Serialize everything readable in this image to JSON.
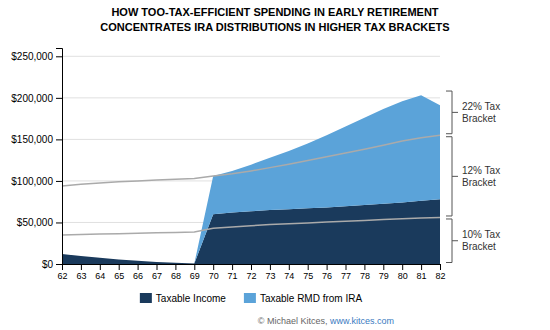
{
  "chart_data": {
    "type": "area",
    "stacked": true,
    "title": "HOW TOO-TAX-EFFICIENT SPENDING IN EARLY RETIREMENT",
    "subtitle": "CONCENTRATES IRA DISTRIBUTIONS IN HIGHER TAX BRACKETS",
    "x": [
      62,
      63,
      64,
      65,
      66,
      67,
      68,
      69,
      70,
      71,
      72,
      73,
      74,
      75,
      76,
      77,
      78,
      79,
      80,
      81,
      82
    ],
    "xlim": [
      62,
      82
    ],
    "xticks": [
      62,
      63,
      64,
      65,
      66,
      67,
      68,
      69,
      70,
      71,
      72,
      73,
      74,
      75,
      76,
      77,
      78,
      79,
      80,
      81,
      82
    ],
    "ylim": [
      0,
      260000
    ],
    "yticks": [
      {
        "value": 0,
        "label": "$0"
      },
      {
        "value": 50000,
        "label": "$50,000"
      },
      {
        "value": 100000,
        "label": "$100,000"
      },
      {
        "value": 150000,
        "label": "$150,000"
      },
      {
        "value": 200000,
        "label": "$200,000"
      },
      {
        "value": 250000,
        "label": "$250,000"
      }
    ],
    "grid": true,
    "legend": "bottom",
    "series": [
      {
        "name": "Taxable Income",
        "type": "area",
        "color": "#1a3a5c",
        "values": [
          12000,
          9500,
          7500,
          5500,
          4000,
          2500,
          1500,
          500,
          60000,
          62000,
          63500,
          65000,
          66000,
          67000,
          68000,
          69500,
          71000,
          72500,
          74000,
          76000,
          78000
        ]
      },
      {
        "name": "Taxable RMD from IRA",
        "type": "area",
        "color": "#5ba3d9",
        "values": [
          0,
          0,
          0,
          0,
          0,
          0,
          0,
          0,
          46000,
          50000,
          56000,
          63000,
          70000,
          78000,
          87000,
          96000,
          105000,
          114000,
          122000,
          127000,
          113000
        ]
      },
      {
        "type": "line",
        "color": "#aaaaaa",
        "values": [
          35000,
          35500,
          36000,
          36500,
          37000,
          37500,
          38000,
          38500,
          43000,
          44500,
          46000,
          47500,
          48500,
          49500,
          50500,
          51500,
          52500,
          53500,
          54500,
          55500,
          56000
        ]
      },
      {
        "type": "line",
        "color": "#aaaaaa",
        "values": [
          94000,
          96000,
          97500,
          99000,
          100000,
          101000,
          102000,
          103000,
          106000,
          108500,
          112000,
          116000,
          120000,
          124500,
          129000,
          133500,
          138000,
          143000,
          148000,
          152000,
          155000
        ]
      }
    ],
    "annotations": [
      {
        "text": "10% Tax\nBracket",
        "y0": 0,
        "y1": 56000
      },
      {
        "text": "12% Tax\nBracket",
        "y0": 56000,
        "y1": 155000
      },
      {
        "text": "22% Tax\nBracket",
        "y0": 155000,
        "y1": 210000
      }
    ],
    "footer": {
      "text": "© Michael Kitces, ",
      "link": "www.kitces.com"
    }
  }
}
